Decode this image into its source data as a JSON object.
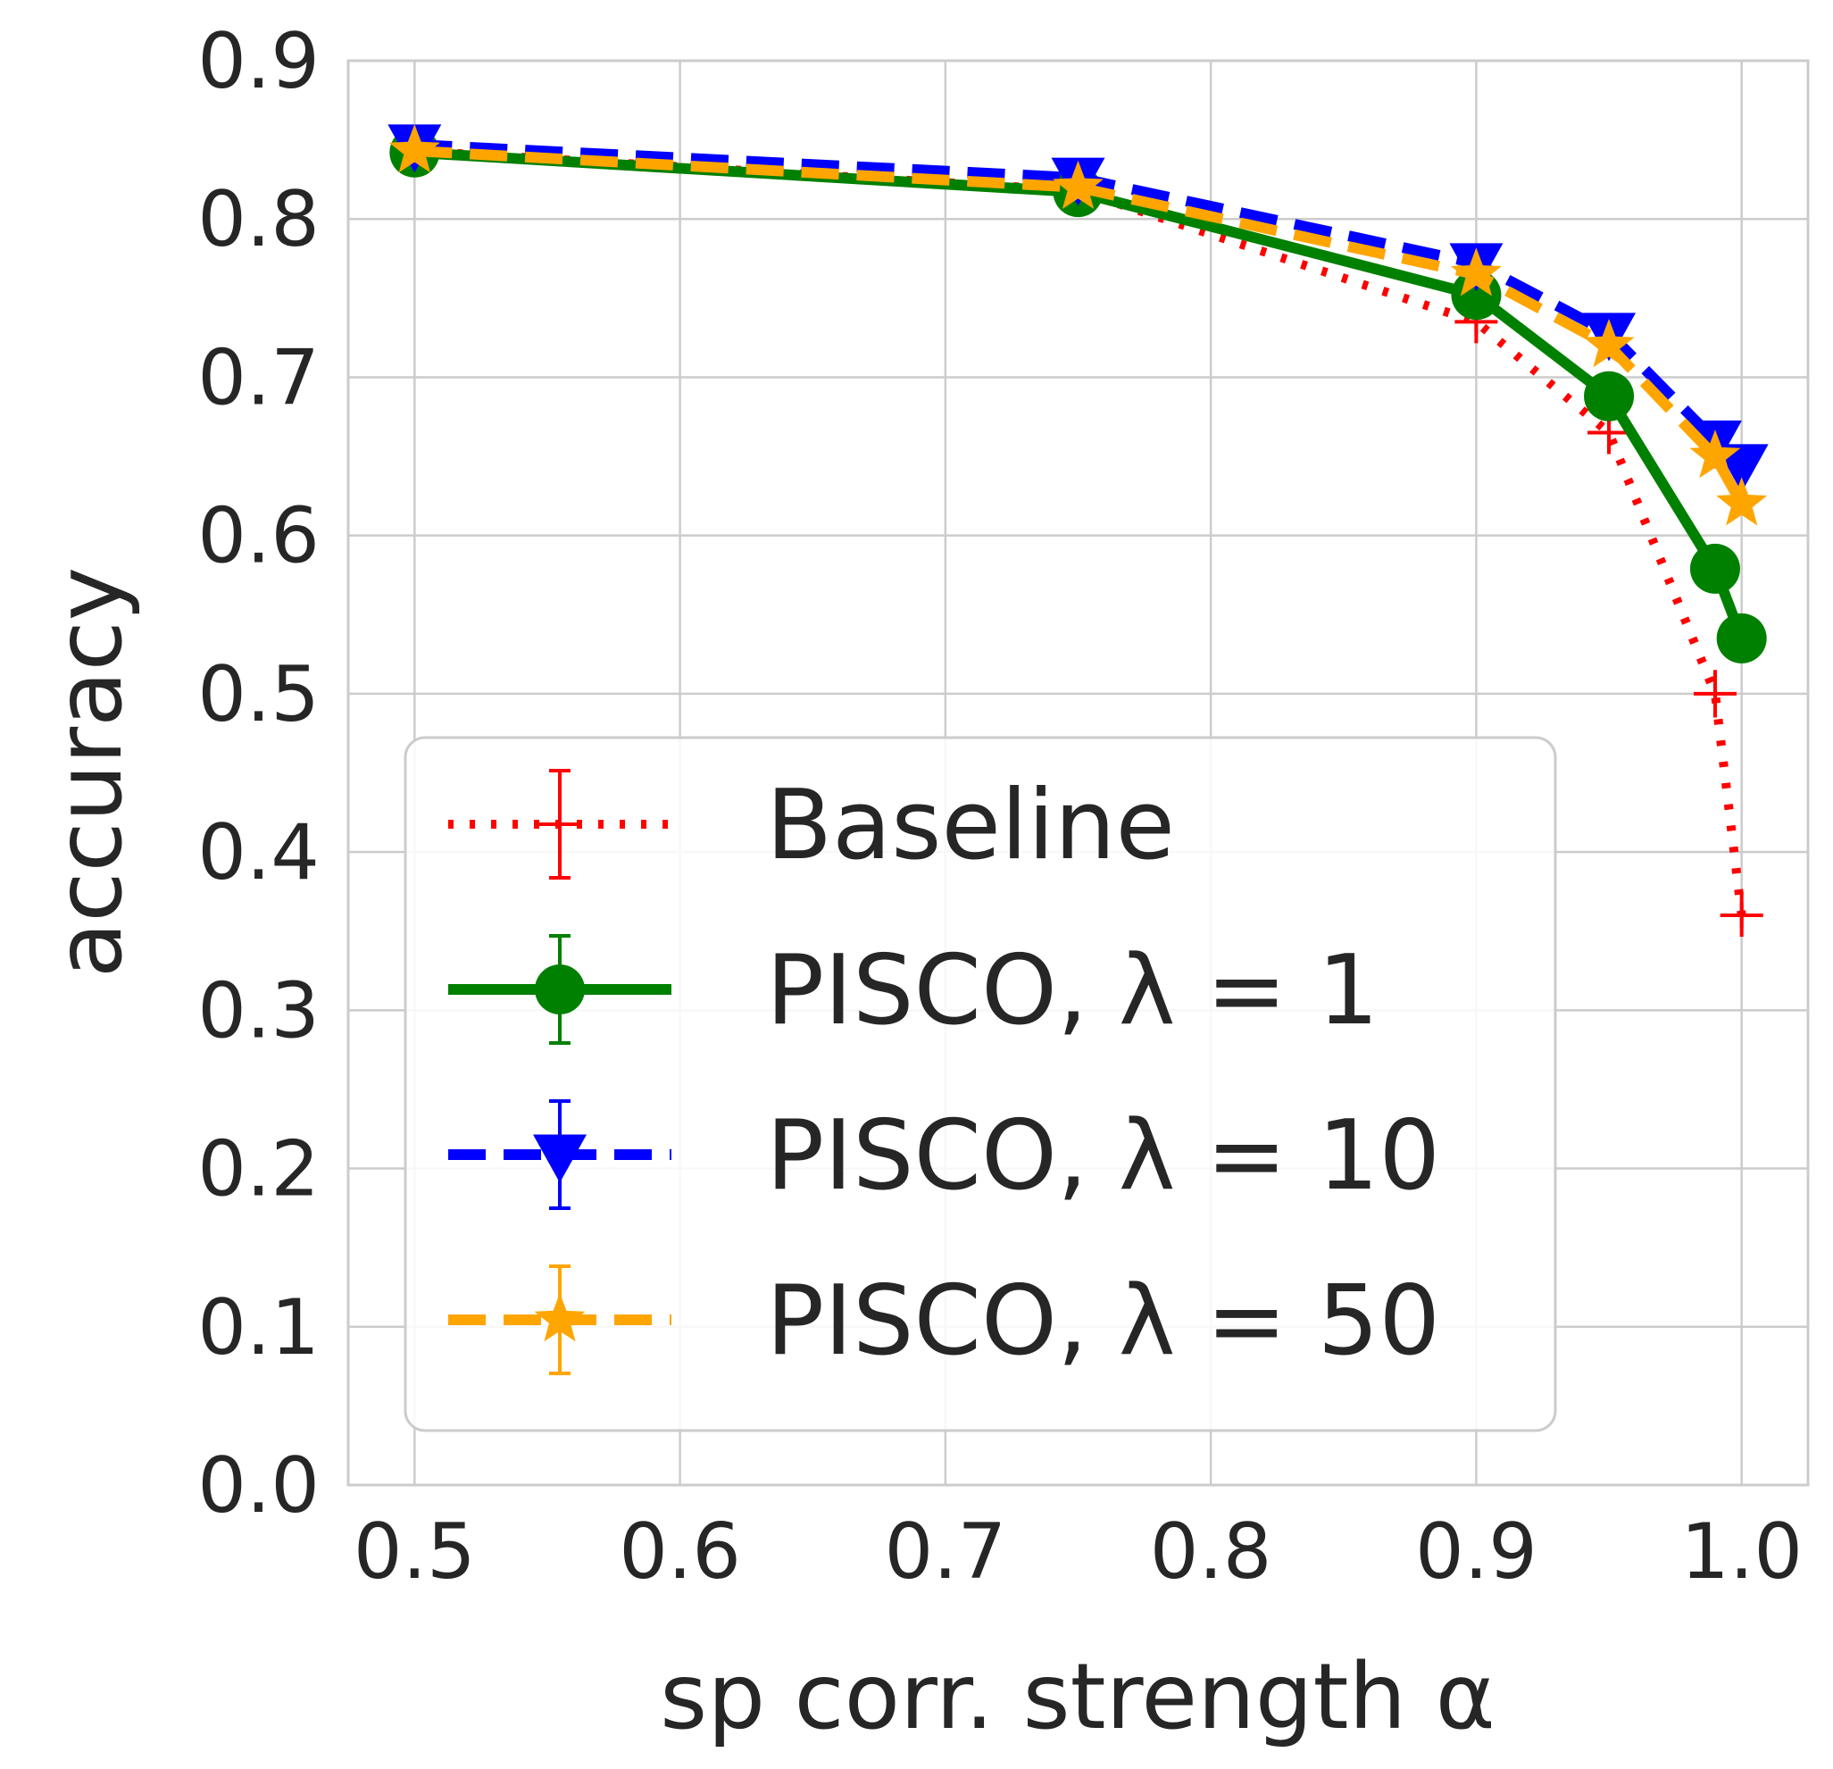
{
  "chart_data": {
    "type": "line",
    "xlabel": "sp corr. strength α",
    "ylabel": "accuracy",
    "xlim": [
      0.475,
      1.025
    ],
    "ylim": [
      0.0,
      0.9
    ],
    "x_ticks": [
      "0.5",
      "0.6",
      "0.7",
      "0.8",
      "0.9",
      "1.0"
    ],
    "y_ticks": [
      "0.0",
      "0.1",
      "0.2",
      "0.3",
      "0.4",
      "0.5",
      "0.6",
      "0.7",
      "0.8",
      "0.9"
    ],
    "grid": true,
    "legend_position": "lower-left",
    "x": [
      0.5,
      0.75,
      0.9,
      0.95,
      0.99,
      1.0
    ],
    "series": [
      {
        "name": "Baseline",
        "color": "#ff0000",
        "linestyle": "dotted",
        "marker": "plus",
        "values": [
          0.843,
          0.818,
          0.735,
          0.665,
          0.5,
          0.36
        ],
        "errors": [
          0.004,
          0.004,
          0.008,
          0.012,
          0.015,
          0.008
        ]
      },
      {
        "name": "PISCO, λ = 1",
        "color": "#008000",
        "linestyle": "solid",
        "marker": "circle",
        "values": [
          0.842,
          0.817,
          0.752,
          0.688,
          0.579,
          0.535
        ],
        "errors": [
          0.003,
          0.003,
          0.004,
          0.005,
          0.006,
          0.006
        ]
      },
      {
        "name": "PISCO, λ = 10",
        "color": "#0000ff",
        "linestyle": "dashed",
        "marker": "triangle-down",
        "values": [
          0.847,
          0.826,
          0.772,
          0.728,
          0.66,
          0.645
        ],
        "errors": [
          0.003,
          0.003,
          0.004,
          0.004,
          0.005,
          0.005
        ]
      },
      {
        "name": "PISCO, λ = 50",
        "color": "#ffa500",
        "linestyle": "dashed",
        "marker": "star",
        "values": [
          0.843,
          0.82,
          0.765,
          0.72,
          0.65,
          0.62
        ],
        "errors": [
          0.003,
          0.003,
          0.004,
          0.004,
          0.005,
          0.005
        ]
      }
    ]
  }
}
